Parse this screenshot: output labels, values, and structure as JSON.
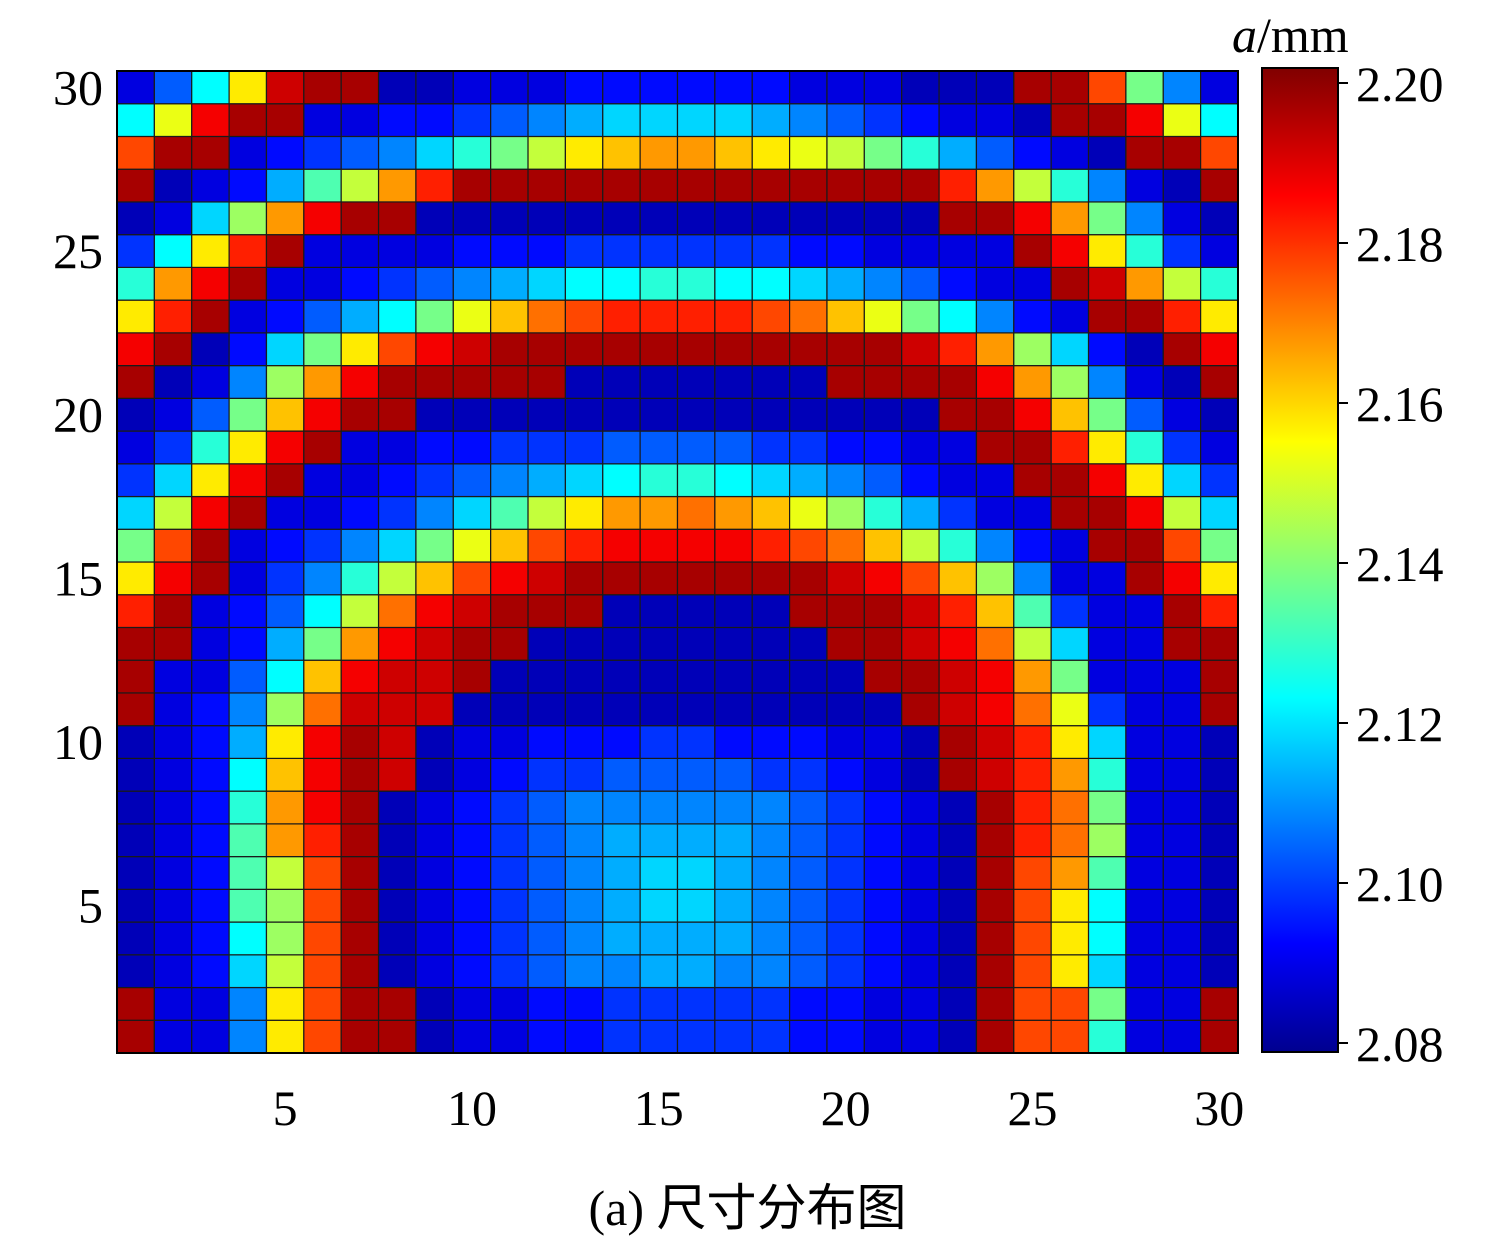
{
  "chart_data": {
    "type": "heatmap",
    "title": "",
    "xlabel": "",
    "ylabel": "",
    "x_ticks": [
      5,
      10,
      15,
      20,
      25,
      30
    ],
    "y_ticks": [
      5,
      10,
      15,
      20,
      25,
      30
    ],
    "xlim": [
      1,
      30
    ],
    "ylim": [
      1,
      30
    ],
    "colorbar": {
      "label_italic": "a",
      "label_rest": "/mm",
      "ticks": [
        "2.08",
        "2.10",
        "2.12",
        "2.14",
        "2.16",
        "2.18",
        "2.20"
      ],
      "range": [
        2.08,
        2.205
      ],
      "colormap": "jet"
    },
    "grid_lines": true,
    "values": [
      [
        2.2,
        2.09,
        2.09,
        2.11,
        2.16,
        2.18,
        2.2,
        2.2,
        2.085,
        2.09,
        2.09,
        2.095,
        2.095,
        2.1,
        2.1,
        2.1,
        2.1,
        2.1,
        2.095,
        2.095,
        2.09,
        2.09,
        2.085,
        2.2,
        2.18,
        2.18,
        2.13,
        2.09,
        2.09,
        2.2
      ],
      [
        2.2,
        2.09,
        2.09,
        2.11,
        2.16,
        2.18,
        2.2,
        2.2,
        2.085,
        2.09,
        2.09,
        2.095,
        2.095,
        2.1,
        2.1,
        2.1,
        2.1,
        2.1,
        2.095,
        2.095,
        2.09,
        2.09,
        2.085,
        2.2,
        2.18,
        2.18,
        2.14,
        2.09,
        2.09,
        2.2
      ],
      [
        2.085,
        2.09,
        2.095,
        2.12,
        2.15,
        2.18,
        2.2,
        2.085,
        2.09,
        2.095,
        2.1,
        2.105,
        2.11,
        2.11,
        2.115,
        2.115,
        2.11,
        2.11,
        2.105,
        2.1,
        2.095,
        2.09,
        2.085,
        2.2,
        2.18,
        2.16,
        2.12,
        2.09,
        2.09,
        2.085
      ],
      [
        2.085,
        2.09,
        2.095,
        2.125,
        2.145,
        2.18,
        2.2,
        2.085,
        2.09,
        2.095,
        2.1,
        2.105,
        2.11,
        2.115,
        2.115,
        2.115,
        2.115,
        2.11,
        2.105,
        2.1,
        2.095,
        2.09,
        2.085,
        2.2,
        2.18,
        2.16,
        2.125,
        2.09,
        2.09,
        2.085
      ],
      [
        2.085,
        2.09,
        2.095,
        2.135,
        2.145,
        2.18,
        2.2,
        2.085,
        2.09,
        2.095,
        2.1,
        2.105,
        2.11,
        2.115,
        2.12,
        2.12,
        2.115,
        2.11,
        2.105,
        2.1,
        2.095,
        2.09,
        2.085,
        2.2,
        2.18,
        2.16,
        2.125,
        2.09,
        2.09,
        2.085
      ],
      [
        2.085,
        2.09,
        2.095,
        2.135,
        2.15,
        2.18,
        2.2,
        2.085,
        2.09,
        2.095,
        2.1,
        2.105,
        2.11,
        2.115,
        2.12,
        2.12,
        2.115,
        2.11,
        2.105,
        2.1,
        2.095,
        2.09,
        2.085,
        2.2,
        2.18,
        2.17,
        2.135,
        2.09,
        2.09,
        2.085
      ],
      [
        2.085,
        2.09,
        2.095,
        2.135,
        2.17,
        2.185,
        2.2,
        2.085,
        2.09,
        2.095,
        2.1,
        2.105,
        2.11,
        2.115,
        2.115,
        2.115,
        2.115,
        2.11,
        2.105,
        2.1,
        2.095,
        2.09,
        2.085,
        2.2,
        2.185,
        2.175,
        2.145,
        2.09,
        2.09,
        2.085
      ],
      [
        2.085,
        2.09,
        2.095,
        2.13,
        2.17,
        2.19,
        2.2,
        2.085,
        2.09,
        2.095,
        2.1,
        2.105,
        2.11,
        2.11,
        2.11,
        2.11,
        2.11,
        2.11,
        2.105,
        2.1,
        2.095,
        2.09,
        2.085,
        2.2,
        2.185,
        2.175,
        2.14,
        2.09,
        2.09,
        2.085
      ],
      [
        2.085,
        2.09,
        2.095,
        2.125,
        2.165,
        2.19,
        2.2,
        2.195,
        2.085,
        2.09,
        2.095,
        2.1,
        2.1,
        2.105,
        2.105,
        2.105,
        2.105,
        2.1,
        2.1,
        2.095,
        2.09,
        2.085,
        2.2,
        2.195,
        2.185,
        2.17,
        2.13,
        2.09,
        2.09,
        2.085
      ],
      [
        2.085,
        2.09,
        2.095,
        2.115,
        2.16,
        2.19,
        2.2,
        2.195,
        2.085,
        2.09,
        2.09,
        2.095,
        2.095,
        2.095,
        2.1,
        2.1,
        2.095,
        2.095,
        2.095,
        2.09,
        2.09,
        2.085,
        2.2,
        2.195,
        2.185,
        2.16,
        2.12,
        2.09,
        2.09,
        2.085
      ],
      [
        2.2,
        2.09,
        2.095,
        2.11,
        2.145,
        2.175,
        2.195,
        2.195,
        2.195,
        2.085,
        2.085,
        2.085,
        2.085,
        2.085,
        2.085,
        2.085,
        2.085,
        2.085,
        2.085,
        2.085,
        2.085,
        2.2,
        2.195,
        2.19,
        2.175,
        2.155,
        2.1,
        2.09,
        2.09,
        2.2
      ],
      [
        2.2,
        2.09,
        2.09,
        2.105,
        2.125,
        2.165,
        2.19,
        2.195,
        2.195,
        2.2,
        2.085,
        2.085,
        2.085,
        2.085,
        2.085,
        2.085,
        2.085,
        2.085,
        2.085,
        2.085,
        2.2,
        2.2,
        2.195,
        2.19,
        2.17,
        2.14,
        2.09,
        2.09,
        2.09,
        2.2
      ],
      [
        2.2,
        2.2,
        2.09,
        2.095,
        2.115,
        2.14,
        2.17,
        2.19,
        2.195,
        2.2,
        2.2,
        2.085,
        2.085,
        2.085,
        2.085,
        2.085,
        2.085,
        2.085,
        2.085,
        2.2,
        2.2,
        2.195,
        2.19,
        2.175,
        2.15,
        2.12,
        2.09,
        2.09,
        2.2,
        2.2
      ],
      [
        2.185,
        2.2,
        2.09,
        2.095,
        2.105,
        2.125,
        2.15,
        2.175,
        2.19,
        2.195,
        2.2,
        2.2,
        2.2,
        2.085,
        2.085,
        2.085,
        2.085,
        2.085,
        2.2,
        2.2,
        2.2,
        2.195,
        2.185,
        2.165,
        2.135,
        2.1,
        2.09,
        2.09,
        2.2,
        2.185
      ],
      [
        2.16,
        2.19,
        2.2,
        2.09,
        2.1,
        2.11,
        2.13,
        2.15,
        2.165,
        2.18,
        2.19,
        2.195,
        2.2,
        2.2,
        2.2,
        2.2,
        2.2,
        2.2,
        2.2,
        2.195,
        2.19,
        2.18,
        2.165,
        2.145,
        2.11,
        2.09,
        2.09,
        2.2,
        2.19,
        2.16
      ],
      [
        2.14,
        2.18,
        2.2,
        2.09,
        2.095,
        2.1,
        2.11,
        2.12,
        2.14,
        2.155,
        2.165,
        2.18,
        2.185,
        2.19,
        2.19,
        2.19,
        2.19,
        2.185,
        2.18,
        2.175,
        2.165,
        2.15,
        2.13,
        2.11,
        2.095,
        2.09,
        2.2,
        2.2,
        2.18,
        2.14
      ],
      [
        2.12,
        2.15,
        2.19,
        2.2,
        2.09,
        2.09,
        2.095,
        2.1,
        2.11,
        2.12,
        2.135,
        2.15,
        2.16,
        2.17,
        2.17,
        2.175,
        2.17,
        2.165,
        2.155,
        2.145,
        2.13,
        2.115,
        2.1,
        2.09,
        2.09,
        2.2,
        2.2,
        2.19,
        2.15,
        2.12
      ],
      [
        2.1,
        2.12,
        2.16,
        2.19,
        2.2,
        2.09,
        2.09,
        2.095,
        2.1,
        2.105,
        2.11,
        2.115,
        2.12,
        2.125,
        2.13,
        2.13,
        2.125,
        2.12,
        2.115,
        2.11,
        2.105,
        2.095,
        2.09,
        2.09,
        2.2,
        2.2,
        2.19,
        2.16,
        2.12,
        2.1
      ],
      [
        2.09,
        2.1,
        2.13,
        2.16,
        2.19,
        2.2,
        2.09,
        2.09,
        2.095,
        2.095,
        2.1,
        2.1,
        2.1,
        2.105,
        2.105,
        2.105,
        2.105,
        2.1,
        2.1,
        2.095,
        2.095,
        2.09,
        2.09,
        2.2,
        2.2,
        2.185,
        2.16,
        2.13,
        2.1,
        2.09
      ],
      [
        2.085,
        2.09,
        2.105,
        2.14,
        2.165,
        2.19,
        2.2,
        2.2,
        2.085,
        2.085,
        2.085,
        2.085,
        2.085,
        2.085,
        2.085,
        2.085,
        2.085,
        2.085,
        2.085,
        2.085,
        2.085,
        2.085,
        2.2,
        2.2,
        2.19,
        2.165,
        2.14,
        2.105,
        2.09,
        2.085
      ],
      [
        2.2,
        2.085,
        2.09,
        2.11,
        2.145,
        2.17,
        2.19,
        2.2,
        2.2,
        2.2,
        2.2,
        2.2,
        2.085,
        2.085,
        2.085,
        2.085,
        2.085,
        2.085,
        2.085,
        2.2,
        2.2,
        2.2,
        2.2,
        2.19,
        2.17,
        2.145,
        2.11,
        2.09,
        2.085,
        2.2
      ],
      [
        2.19,
        2.2,
        2.085,
        2.095,
        2.12,
        2.14,
        2.16,
        2.18,
        2.19,
        2.195,
        2.2,
        2.2,
        2.2,
        2.2,
        2.2,
        2.2,
        2.2,
        2.2,
        2.2,
        2.2,
        2.2,
        2.195,
        2.185,
        2.17,
        2.145,
        2.12,
        2.095,
        2.085,
        2.2,
        2.19
      ],
      [
        2.16,
        2.185,
        2.2,
        2.09,
        2.095,
        2.105,
        2.115,
        2.125,
        2.14,
        2.155,
        2.165,
        2.175,
        2.18,
        2.185,
        2.185,
        2.185,
        2.185,
        2.18,
        2.175,
        2.165,
        2.155,
        2.14,
        2.125,
        2.11,
        2.095,
        2.09,
        2.2,
        2.2,
        2.185,
        2.16
      ],
      [
        2.13,
        2.17,
        2.19,
        2.2,
        2.09,
        2.09,
        2.095,
        2.1,
        2.105,
        2.11,
        2.115,
        2.12,
        2.125,
        2.125,
        2.13,
        2.13,
        2.125,
        2.125,
        2.12,
        2.115,
        2.11,
        2.105,
        2.095,
        2.09,
        2.09,
        2.2,
        2.195,
        2.17,
        2.15,
        2.13
      ],
      [
        2.1,
        2.125,
        2.16,
        2.185,
        2.2,
        2.09,
        2.09,
        2.09,
        2.09,
        2.095,
        2.095,
        2.095,
        2.1,
        2.1,
        2.1,
        2.1,
        2.1,
        2.1,
        2.095,
        2.095,
        2.09,
        2.09,
        2.09,
        2.09,
        2.2,
        2.19,
        2.16,
        2.13,
        2.1,
        2.09
      ],
      [
        2.085,
        2.09,
        2.12,
        2.145,
        2.17,
        2.19,
        2.2,
        2.2,
        2.085,
        2.085,
        2.085,
        2.085,
        2.085,
        2.085,
        2.085,
        2.085,
        2.085,
        2.085,
        2.085,
        2.085,
        2.085,
        2.085,
        2.2,
        2.2,
        2.19,
        2.17,
        2.14,
        2.11,
        2.09,
        2.085
      ],
      [
        2.2,
        2.085,
        2.09,
        2.095,
        2.115,
        2.135,
        2.15,
        2.17,
        2.185,
        2.2,
        2.2,
        2.2,
        2.2,
        2.2,
        2.2,
        2.2,
        2.2,
        2.2,
        2.2,
        2.2,
        2.2,
        2.2,
        2.185,
        2.17,
        2.15,
        2.13,
        2.11,
        2.09,
        2.085,
        2.2
      ],
      [
        2.18,
        2.2,
        2.2,
        2.09,
        2.095,
        2.1,
        2.105,
        2.11,
        2.12,
        2.13,
        2.14,
        2.15,
        2.16,
        2.165,
        2.17,
        2.17,
        2.165,
        2.16,
        2.155,
        2.15,
        2.14,
        2.13,
        2.115,
        2.105,
        2.095,
        2.09,
        2.085,
        2.2,
        2.2,
        2.18
      ],
      [
        2.125,
        2.155,
        2.19,
        2.2,
        2.2,
        2.09,
        2.09,
        2.095,
        2.095,
        2.1,
        2.105,
        2.11,
        2.115,
        2.12,
        2.12,
        2.12,
        2.12,
        2.115,
        2.11,
        2.105,
        2.1,
        2.095,
        2.09,
        2.09,
        2.085,
        2.2,
        2.2,
        2.19,
        2.155,
        2.125
      ],
      [
        2.09,
        2.105,
        2.125,
        2.16,
        2.195,
        2.2,
        2.2,
        2.085,
        2.085,
        2.09,
        2.09,
        2.09,
        2.095,
        2.095,
        2.095,
        2.095,
        2.095,
        2.095,
        2.09,
        2.09,
        2.09,
        2.085,
        2.085,
        2.085,
        2.2,
        2.2,
        2.18,
        2.14,
        2.11,
        2.09
      ]
    ]
  },
  "caption": {
    "text": "(a) 尺寸分布图"
  }
}
